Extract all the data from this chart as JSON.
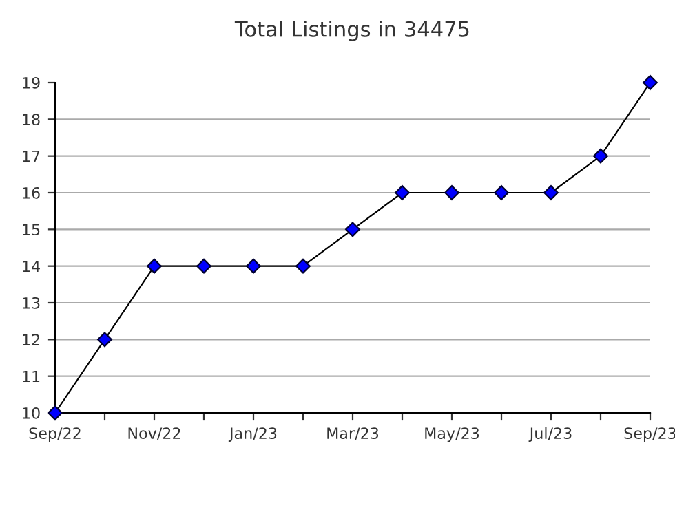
{
  "chart_data": {
    "type": "line",
    "title": "Total Listings in 34475",
    "categories": [
      "Sep/22",
      null,
      "Nov/22",
      null,
      "Jan/23",
      null,
      "Mar/23",
      null,
      "May/23",
      null,
      "Jul/23",
      null,
      "Sep/23"
    ],
    "series": [
      {
        "color": "#0000ff",
        "values": [
          10,
          12,
          14,
          14,
          14,
          14,
          15,
          16,
          16,
          16,
          16,
          17,
          19
        ]
      }
    ],
    "ylim": [
      10,
      19
    ],
    "yticks": [
      10,
      11,
      12,
      13,
      14,
      15,
      16,
      17,
      18,
      19
    ],
    "grid": "y",
    "marker": "diamond",
    "line_style": "solid",
    "legend": false
  }
}
